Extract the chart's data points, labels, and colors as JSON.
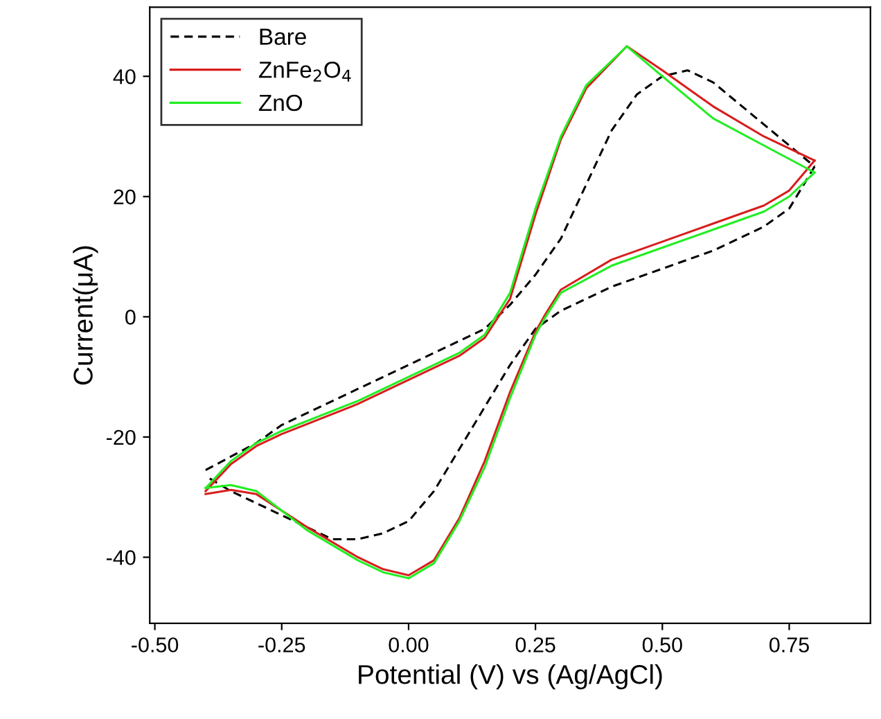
{
  "chart_data": {
    "type": "line",
    "xlabel": "Potential (V) vs (Ag/AgCl)",
    "ylabel": "Current(μA)",
    "xlim": [
      -0.51,
      0.91
    ],
    "ylim": [
      -51,
      51.5
    ],
    "xticks": [
      {
        "value": -0.5,
        "label": "-0.50"
      },
      {
        "value": -0.25,
        "label": "-0.25"
      },
      {
        "value": 0,
        "label": "0.00"
      },
      {
        "value": 0.25,
        "label": "0.25"
      },
      {
        "value": 0.5,
        "label": "0.50"
      },
      {
        "value": 0.75,
        "label": "0.75"
      }
    ],
    "yticks": [
      -40,
      -20,
      0,
      20,
      40
    ],
    "grid": false,
    "legend": "top left",
    "marker": "none",
    "series": [
      {
        "name": "Bare",
        "color": "#000000",
        "line_style": "dashed",
        "x": [
          -0.4,
          -0.3,
          -0.25,
          -0.1,
          0,
          0.1,
          0.15,
          0.2,
          0.25,
          0.3,
          0.35,
          0.4,
          0.45,
          0.5,
          0.55,
          0.6,
          0.7,
          0.8
        ],
        "values": [
          -25.5,
          -21,
          -18,
          -12,
          -8,
          -4,
          -2,
          2,
          7,
          13,
          22,
          31,
          37,
          40,
          41,
          39,
          32,
          25
        ]
      },
      {
        "color": "#000000",
        "line_style": "dashed",
        "x": [
          0.8,
          0.75,
          0.7,
          0.6,
          0.5,
          0.4,
          0.3,
          0.25,
          0.2,
          0.15,
          0.1,
          0.05,
          0,
          -0.05,
          -0.1,
          -0.15,
          -0.2,
          -0.3,
          -0.35,
          -0.4
        ],
        "values": [
          25,
          18,
          15,
          11,
          8,
          5,
          1,
          -2,
          -8,
          -15,
          -22,
          -29,
          -34,
          -36,
          -37,
          -37,
          -35,
          -31,
          -29,
          -26.5
        ]
      },
      {
        "name": "ZnFe$_{2}$O$_{4}$",
        "color": "#d81e1e",
        "line_style": "solid",
        "x": [
          -0.4,
          -0.35,
          -0.3,
          -0.25,
          -0.1,
          0,
          0.1,
          0.15,
          0.2,
          0.25,
          0.3,
          0.35,
          0.43,
          0.5,
          0.6,
          0.7,
          0.8
        ],
        "values": [
          -29,
          -24.5,
          -21.5,
          -19.5,
          -14.5,
          -10.5,
          -6.5,
          -3.5,
          3,
          17,
          29.5,
          38,
          45,
          41,
          35,
          30,
          26
        ]
      },
      {
        "color": "#d81e1e",
        "line_style": "solid",
        "x": [
          0.8,
          0.75,
          0.7,
          0.6,
          0.5,
          0.4,
          0.3,
          0.27,
          0.25,
          0.2,
          0.15,
          0.1,
          0.05,
          0,
          -0.05,
          -0.1,
          -0.2,
          -0.3,
          -0.35,
          -0.4
        ],
        "values": [
          26,
          21,
          18.5,
          15.5,
          12.5,
          9.5,
          4.5,
          0.5,
          -2.5,
          -12.5,
          -24,
          -33.5,
          -40.5,
          -43,
          -42,
          -40,
          -35,
          -29.5,
          -28.8,
          -29.5
        ]
      },
      {
        "name": "ZnO",
        "color": "#22ee22",
        "line_style": "solid",
        "x": [
          -0.4,
          -0.35,
          -0.3,
          -0.25,
          -0.1,
          0,
          0.1,
          0.15,
          0.2,
          0.25,
          0.3,
          0.35,
          0.43,
          0.5,
          0.6,
          0.7,
          0.8
        ],
        "values": [
          -28.5,
          -24,
          -21,
          -19,
          -14,
          -10,
          -6,
          -3,
          4,
          18,
          30,
          38.5,
          45,
          40,
          33,
          28.5,
          24
        ]
      },
      {
        "color": "#22ee22",
        "line_style": "solid",
        "x": [
          0.8,
          0.75,
          0.7,
          0.6,
          0.5,
          0.4,
          0.3,
          0.27,
          0.25,
          0.2,
          0.15,
          0.1,
          0.05,
          0,
          -0.05,
          -0.1,
          -0.2,
          -0.3,
          -0.35,
          -0.4
        ],
        "values": [
          24,
          20,
          17.5,
          14.5,
          11.5,
          8.5,
          4,
          0,
          -3,
          -13.5,
          -25,
          -34,
          -41,
          -43.5,
          -42.5,
          -40.5,
          -35.5,
          -29,
          -28,
          -28.5
        ]
      }
    ]
  }
}
